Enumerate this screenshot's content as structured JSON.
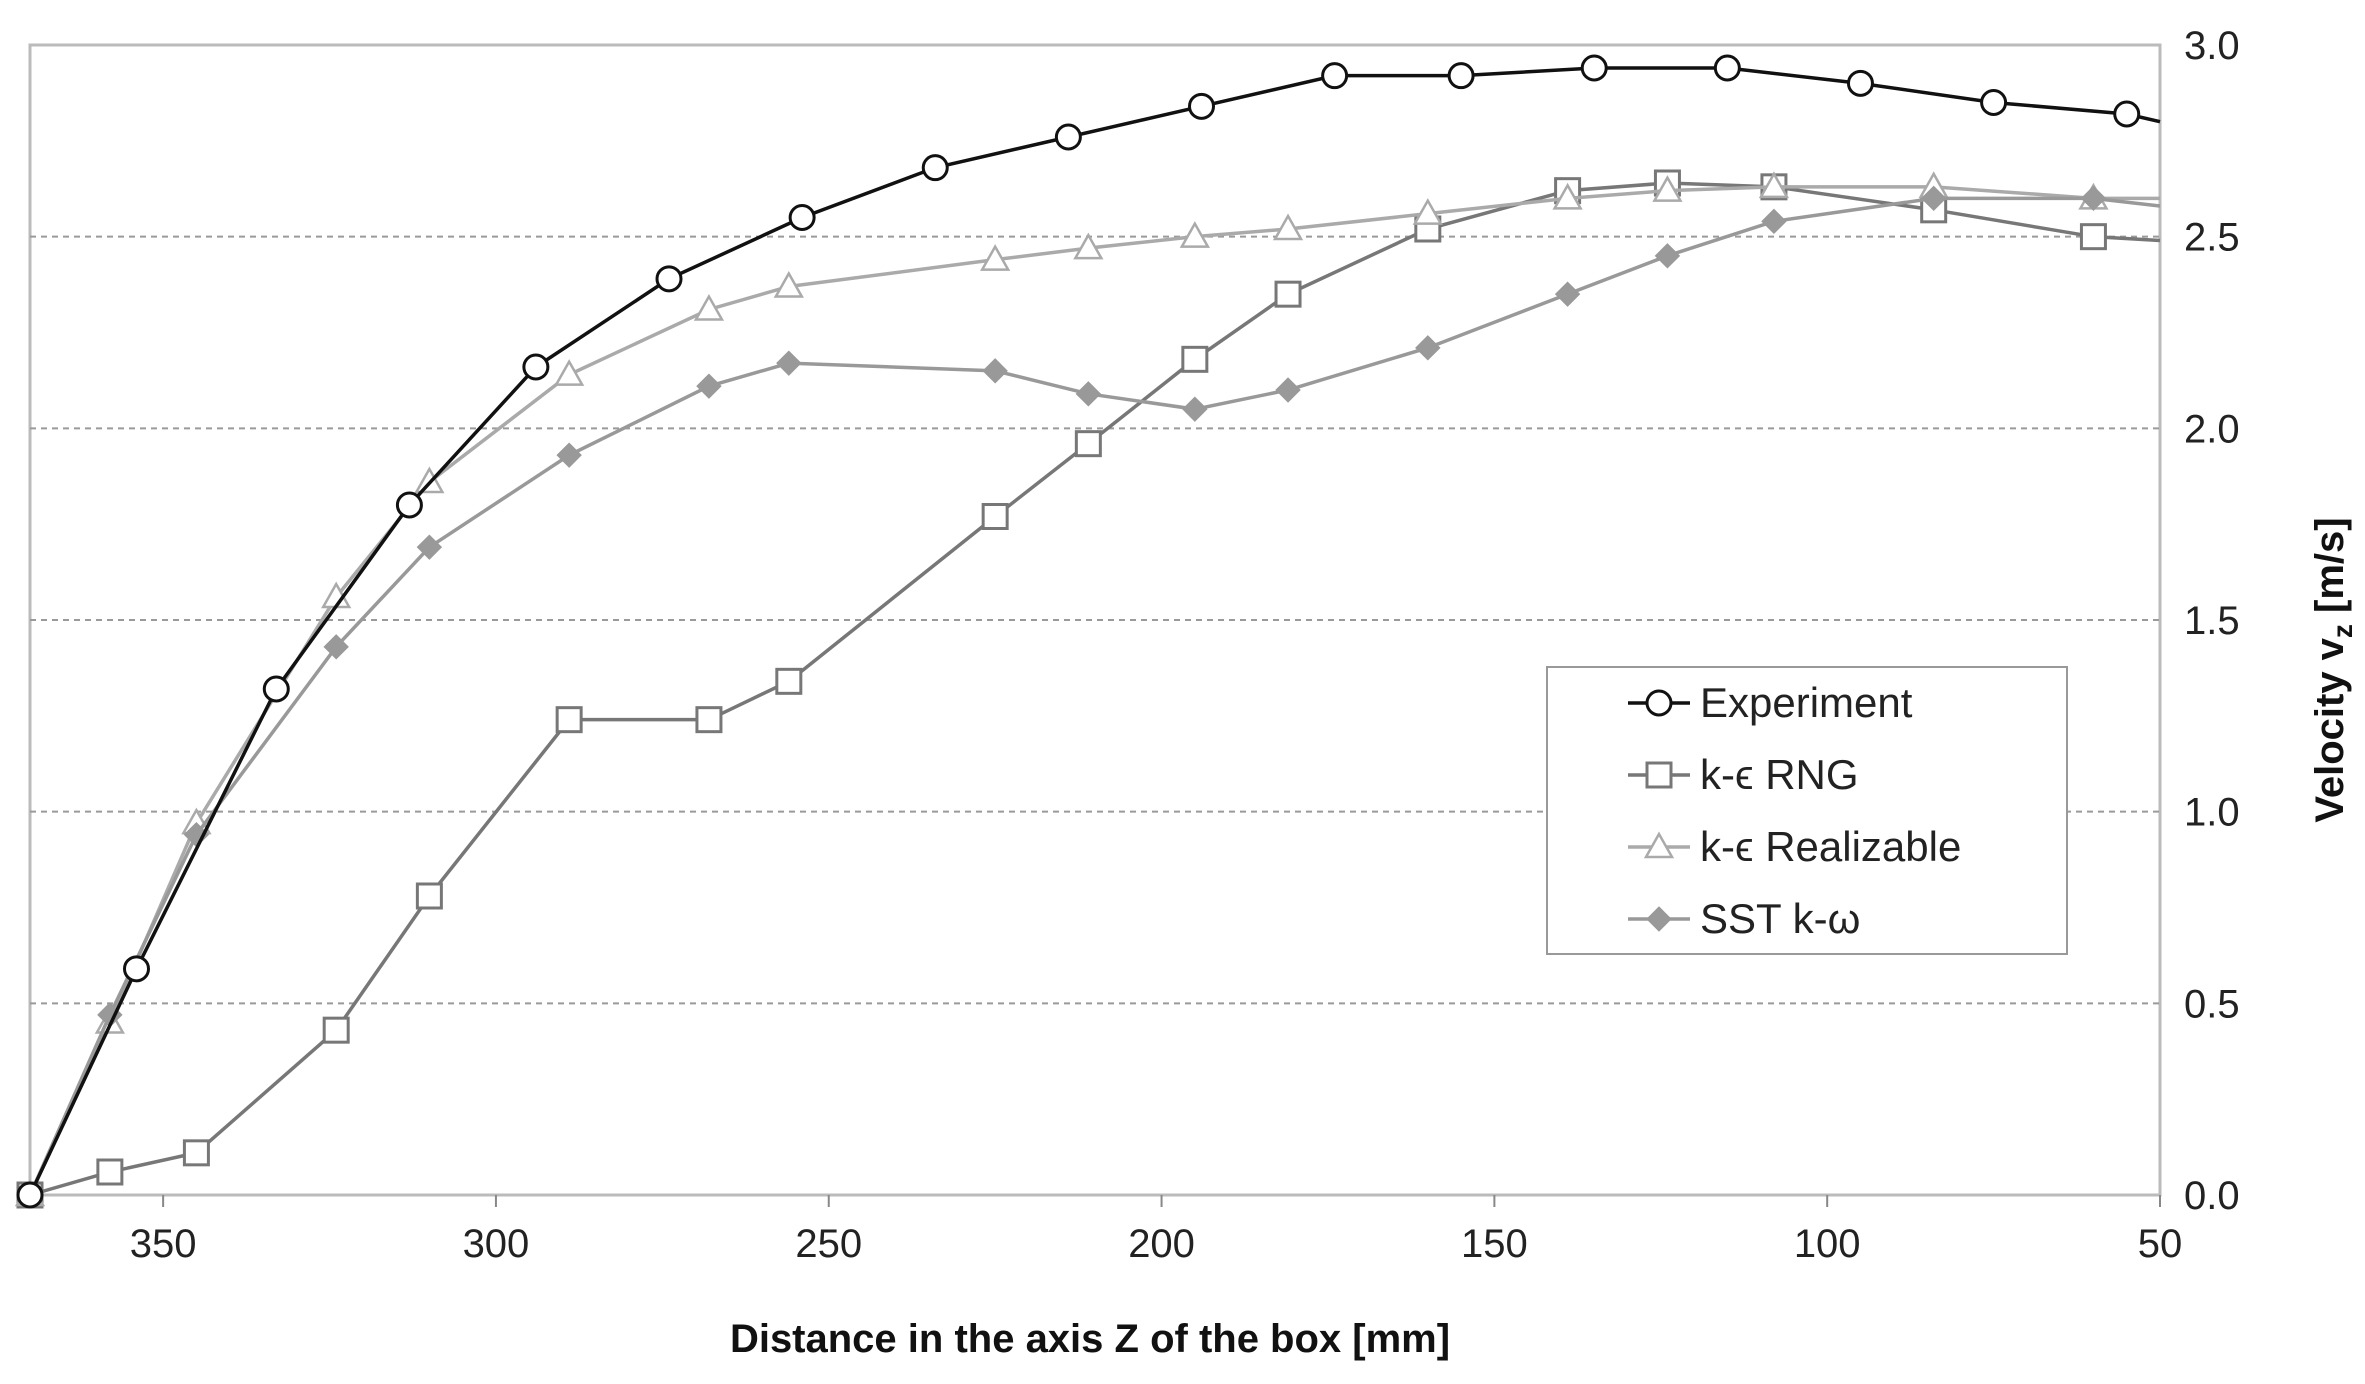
{
  "chart_data": {
    "type": "line",
    "xlabel": "Distance in the axis Z of the box [mm]",
    "ylabel_main": "Velocity v",
    "ylabel_sub": "z",
    "ylabel_unit": " [m/s]",
    "x_reversed": true,
    "xlim": [
      370,
      50
    ],
    "ylim": [
      0,
      3.0
    ],
    "x_ticks": [
      {
        "value": 350,
        "label": "350"
      },
      {
        "value": 300,
        "label": "300"
      },
      {
        "value": 250,
        "label": "250"
      },
      {
        "value": 200,
        "label": "200"
      },
      {
        "value": 150,
        "label": "150"
      },
      {
        "value": 100,
        "label": "100"
      },
      {
        "value": 50,
        "label": "50"
      }
    ],
    "y_ticks": [
      {
        "value": 0.0,
        "label": "0.0"
      },
      {
        "value": 0.5,
        "label": "0.5"
      },
      {
        "value": 1.0,
        "label": "1.0"
      },
      {
        "value": 1.5,
        "label": "1.5"
      },
      {
        "value": 2.0,
        "label": "2.0"
      },
      {
        "value": 2.5,
        "label": "2.5"
      },
      {
        "value": 3.0,
        "label": "3.0"
      }
    ],
    "y_grid": true,
    "y_axis_side": "right",
    "legend_position": "center-right",
    "series": [
      {
        "name": "Experiment",
        "color": "#111111",
        "marker": "circle",
        "x": [
          370,
          354,
          333,
          313,
          294,
          274,
          254,
          234,
          214,
          194,
          174,
          155,
          135,
          115,
          95,
          75,
          55,
          50
        ],
        "y": [
          0.0,
          0.59,
          1.32,
          1.8,
          2.16,
          2.39,
          2.55,
          2.68,
          2.76,
          2.84,
          2.92,
          2.92,
          2.94,
          2.94,
          2.9,
          2.85,
          2.82,
          2.8
        ]
      },
      {
        "name": "k-ϵ RNG",
        "color": "#777777",
        "marker": "square",
        "x": [
          370,
          358,
          345,
          324,
          310,
          289,
          268,
          256,
          225,
          211,
          195,
          181,
          160,
          139,
          124,
          108,
          84,
          60,
          50
        ],
        "y": [
          0.0,
          0.06,
          0.11,
          0.43,
          0.78,
          1.24,
          1.24,
          1.34,
          1.77,
          1.96,
          2.18,
          2.35,
          2.52,
          2.62,
          2.64,
          2.63,
          2.57,
          2.5,
          2.49
        ]
      },
      {
        "name": "k-ϵ Realizable",
        "color": "#aaaaaa",
        "marker": "triangle",
        "x": [
          370,
          358,
          345,
          324,
          310,
          289,
          268,
          256,
          225,
          211,
          195,
          181,
          160,
          139,
          124,
          108,
          84,
          60,
          50
        ],
        "y": [
          0.0,
          0.45,
          0.97,
          1.56,
          1.86,
          2.14,
          2.31,
          2.37,
          2.44,
          2.47,
          2.5,
          2.52,
          2.56,
          2.6,
          2.62,
          2.63,
          2.63,
          2.6,
          2.6
        ]
      },
      {
        "name": "SST k-ω",
        "color": "#999999",
        "marker": "diamond",
        "x": [
          370,
          358,
          345,
          324,
          310,
          289,
          268,
          256,
          225,
          211,
          195,
          181,
          160,
          139,
          124,
          108,
          84,
          60,
          50
        ],
        "y": [
          0.0,
          0.47,
          0.94,
          1.43,
          1.69,
          1.93,
          2.11,
          2.17,
          2.15,
          2.09,
          2.05,
          2.1,
          2.21,
          2.35,
          2.45,
          2.54,
          2.6,
          2.6,
          2.58
        ]
      }
    ]
  }
}
